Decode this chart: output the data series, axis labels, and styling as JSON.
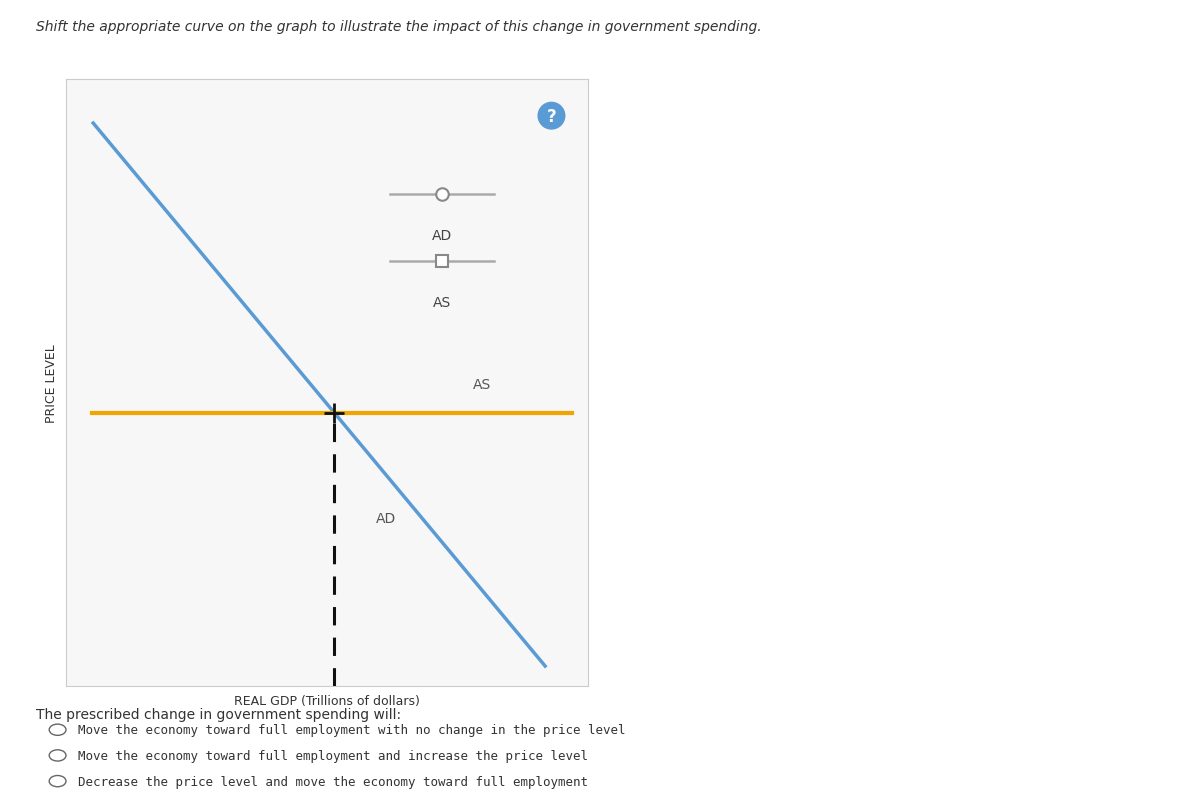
{
  "title": "Shift the appropriate curve on the graph to illustrate the impact of this change in government spending.",
  "xlabel": "REAL GDP (Trillions of dollars)",
  "ylabel": "PRICE LEVEL",
  "ad_label": "AD",
  "as_label": "AS",
  "ad_color": "#5b9bd5",
  "as_color": "#f0a500",
  "dashed_color": "#222222",
  "background_color": "#ffffff",
  "chart_bg": "#f7f7f7",
  "question_text": "The prescribed change in government spending will:",
  "options": [
    "Move the economy toward full employment with no change in the price level",
    "Move the economy toward full employment and increase the price level",
    "Decrease the price level and move the economy toward full employment"
  ],
  "legend_color": "#aaaaaa",
  "circle_color": "#5b9bd5",
  "fig_width": 12.0,
  "fig_height": 8.03
}
